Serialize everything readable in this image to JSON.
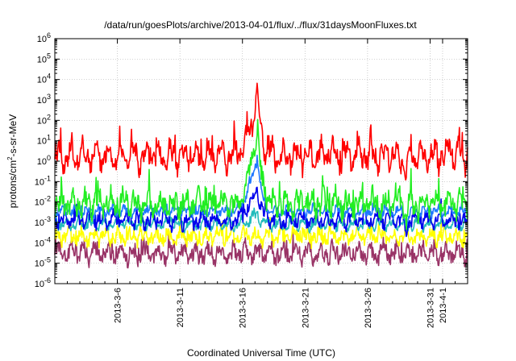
{
  "chart_data": {
    "type": "line",
    "title": "/data/run/goesPlots/archive/2013-04-01/flux/../flux/31daysMoonFluxes.txt",
    "xlabel": "Coordinated Universal Time (UTC)",
    "ylabel": "protons/cm²-s-sr-MeV",
    "ylabel_parts": [
      "protons/cm",
      "2",
      "-s-sr-MeV"
    ],
    "yscale": "log",
    "ylim_exp": [
      -6,
      6
    ],
    "y_tick_exponents": [
      -6,
      -5,
      -4,
      -3,
      -2,
      -1,
      0,
      1,
      2,
      3,
      4,
      5,
      6
    ],
    "xlim_day": [
      1,
      34
    ],
    "x_ticks": [
      {
        "day": 6,
        "label": "2013-3-6"
      },
      {
        "day": 11,
        "label": "2013-3-11"
      },
      {
        "day": 16,
        "label": "2013-3-16"
      },
      {
        "day": 21,
        "label": "2013-3-21"
      },
      {
        "day": 26,
        "label": "2013-3-26"
      },
      {
        "day": 31,
        "label": "2013-3-31"
      },
      {
        "day": 32,
        "label": "2013-4-1"
      }
    ],
    "grid": true,
    "series": [
      {
        "color": "#993366",
        "base": 3e-05,
        "amp": 0.28,
        "noise": 0.7,
        "peak": 1.0,
        "minor": 0,
        "seed": 11
      },
      {
        "color": "#ffff00",
        "base": 0.0002,
        "amp": 0.22,
        "noise": 0.55,
        "peak": 1.0,
        "minor": 0,
        "seed": 23
      },
      {
        "color": "#22bbbb",
        "base": 0.0008,
        "amp": 0.18,
        "noise": 0.3,
        "peak": 3.0,
        "minor": 1.6,
        "seed": 37
      },
      {
        "color": "#0000ee",
        "base": 0.0013,
        "amp": 0.25,
        "noise": 0.5,
        "peak": 40,
        "minor": 3,
        "seed": 41
      },
      {
        "color": "#1e78ff",
        "base": 0.0035,
        "amp": 0.15,
        "noise": 0.3,
        "peak": 500,
        "minor": 4,
        "seed": 53
      },
      {
        "color": "#22ee22",
        "base": 0.008,
        "amp": 0.35,
        "noise": 0.9,
        "peak": 5000,
        "minor": 5,
        "seed": 67
      },
      {
        "color": "#ff0000",
        "base": 1.8,
        "amp": 0.45,
        "noise": 0.8,
        "peak": 600,
        "minor": 5,
        "seed": 79
      }
    ],
    "event": {
      "start_day": 15.2,
      "peak_day": 17.2,
      "end_day": 19.5
    }
  }
}
